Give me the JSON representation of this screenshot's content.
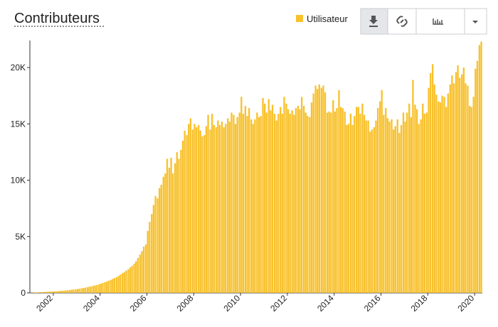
{
  "chart_data": {
    "type": "bar",
    "title": "Contributeurs",
    "x": [
      2001,
      2001.08,
      2001.17,
      2001.25,
      2001.33,
      2001.42,
      2001.5,
      2001.58,
      2001.67,
      2001.75,
      2001.83,
      2001.92,
      2002,
      2002.08,
      2002.17,
      2002.25,
      2002.33,
      2002.42,
      2002.5,
      2002.58,
      2002.67,
      2002.75,
      2002.83,
      2002.92,
      2003,
      2003.08,
      2003.17,
      2003.25,
      2003.33,
      2003.42,
      2003.5,
      2003.58,
      2003.67,
      2003.75,
      2003.83,
      2003.92,
      2004,
      2004.08,
      2004.17,
      2004.25,
      2004.33,
      2004.42,
      2004.5,
      2004.58,
      2004.67,
      2004.75,
      2004.83,
      2004.92,
      2005,
      2005.08,
      2005.17,
      2005.25,
      2005.33,
      2005.42,
      2005.5,
      2005.58,
      2005.67,
      2005.75,
      2005.83,
      2005.92,
      2006,
      2006.08,
      2006.17,
      2006.25,
      2006.33,
      2006.42,
      2006.5,
      2006.58,
      2006.67,
      2006.75,
      2006.83,
      2006.92,
      2007,
      2007.08,
      2007.17,
      2007.25,
      2007.33,
      2007.42,
      2007.5,
      2007.58,
      2007.67,
      2007.75,
      2007.83,
      2007.92,
      2008,
      2008.08,
      2008.17,
      2008.25,
      2008.33,
      2008.42,
      2008.5,
      2008.58,
      2008.67,
      2008.75,
      2008.83,
      2008.92,
      2009,
      2009.08,
      2009.17,
      2009.25,
      2009.33,
      2009.42,
      2009.5,
      2009.58,
      2009.67,
      2009.75,
      2009.83,
      2009.92,
      2010,
      2010.08,
      2010.17,
      2010.25,
      2010.33,
      2010.42,
      2010.5,
      2010.58,
      2010.67,
      2010.75,
      2010.83,
      2010.92,
      2011,
      2011.08,
      2011.17,
      2011.25,
      2011.33,
      2011.42,
      2011.5,
      2011.58,
      2011.67,
      2011.75,
      2011.83,
      2011.92,
      2012,
      2012.08,
      2012.17,
      2012.25,
      2012.33,
      2012.42,
      2012.5,
      2012.58,
      2012.67,
      2012.75,
      2012.83,
      2012.92,
      2013,
      2013.08,
      2013.17,
      2013.25,
      2013.33,
      2013.42,
      2013.5,
      2013.58,
      2013.67,
      2013.75,
      2013.83,
      2013.92,
      2014,
      2014.08,
      2014.17,
      2014.25,
      2014.33,
      2014.42,
      2014.5,
      2014.58,
      2014.67,
      2014.75,
      2014.83,
      2014.92,
      2015,
      2015.08,
      2015.17,
      2015.25,
      2015.33,
      2015.42,
      2015.5,
      2015.58,
      2015.67,
      2015.75,
      2015.83,
      2015.92,
      2016,
      2016.08,
      2016.17,
      2016.25,
      2016.33,
      2016.42,
      2016.5,
      2016.58,
      2016.67,
      2016.75,
      2016.83,
      2016.92,
      2017,
      2017.08,
      2017.17,
      2017.25,
      2017.33,
      2017.42,
      2017.5,
      2017.58,
      2017.67,
      2017.75,
      2017.83,
      2017.92,
      2018,
      2018.08,
      2018.17,
      2018.25,
      2018.33,
      2018.42,
      2018.5,
      2018.58,
      2018.67,
      2018.75,
      2018.83,
      2018.92,
      2019,
      2019.08,
      2019.17,
      2019.25,
      2019.33,
      2019.42,
      2019.5,
      2019.58,
      2019.67,
      2019.75,
      2019.83,
      2019.92,
      2020,
      2020.08,
      2020.17,
      2020.25
    ],
    "series": [
      {
        "name": "Utilisateur",
        "color": "#f8c12d",
        "values": [
          10,
          20,
          30,
          40,
          50,
          60,
          70,
          80,
          90,
          100,
          110,
          120,
          130,
          140,
          160,
          170,
          190,
          200,
          220,
          240,
          260,
          280,
          300,
          320,
          340,
          370,
          400,
          430,
          460,
          500,
          540,
          580,
          620,
          660,
          700,
          760,
          820,
          880,
          950,
          1000,
          1080,
          1150,
          1230,
          1320,
          1400,
          1500,
          1620,
          1750,
          1850,
          1980,
          2100,
          2250,
          2400,
          2600,
          2800,
          3100,
          3400,
          3700,
          4100,
          4300,
          5500,
          6300,
          7000,
          7800,
          8600,
          8400,
          9300,
          9600,
          10300,
          10600,
          11900,
          11100,
          12000,
          10600,
          11500,
          12500,
          11900,
          12700,
          13500,
          14400,
          14000,
          15000,
          15500,
          14500,
          15000,
          14700,
          14900,
          14400,
          13900,
          14000,
          14800,
          15800,
          14500,
          15900,
          14900,
          14700,
          15300,
          14900,
          15200,
          14700,
          15000,
          15500,
          15200,
          16000,
          15800,
          15000,
          15600,
          16000,
          17400,
          15900,
          16600,
          15700,
          16400,
          15400,
          15000,
          15400,
          16000,
          15600,
          15700,
          17300,
          16800,
          16000,
          17200,
          16200,
          16700,
          15900,
          15300,
          15900,
          16500,
          15900,
          17400,
          16800,
          16300,
          15900,
          16200,
          15800,
          16400,
          16600,
          16300,
          17400,
          16600,
          16000,
          15700,
          15600,
          16900,
          17700,
          18400,
          18100,
          18500,
          18200,
          18400,
          17800,
          16000,
          16100,
          16000,
          17100,
          16100,
          16400,
          18000,
          16500,
          16400,
          16100,
          14900,
          15000,
          15900,
          14900,
          15700,
          16500,
          16500,
          15900,
          16800,
          15800,
          15300,
          15300,
          14300,
          14500,
          14700,
          15300,
          16400,
          17000,
          18000,
          15800,
          16400,
          15500,
          15200,
          15400,
          14500,
          14800,
          15400,
          14200,
          14900,
          16000,
          15200,
          16000,
          16800,
          15600,
          18900,
          16700,
          16300,
          15000,
          15400,
          16800,
          15900,
          16000,
          18200,
          19500,
          20300,
          18500,
          17600,
          17000,
          16900,
          17500,
          17400,
          16500,
          17700,
          18500,
          19300,
          18600,
          19600,
          20200,
          19100,
          19400,
          20000,
          18600,
          18400,
          16600,
          16500,
          17400,
          19900,
          20600,
          22000,
          22300
        ]
      }
    ],
    "xlim": [
      2001,
      2020.33
    ],
    "xticks": [
      2002,
      2004,
      2006,
      2008,
      2010,
      2012,
      2014,
      2016,
      2018,
      2020
    ],
    "ylim": [
      0,
      22400
    ],
    "yticks": [
      0,
      {
        "value": 5000,
        "label": "5K"
      },
      {
        "value": 10000,
        "label": "10K"
      },
      {
        "value": 15000,
        "label": "15K"
      },
      {
        "value": 20000,
        "label": "20K"
      }
    ]
  }
}
